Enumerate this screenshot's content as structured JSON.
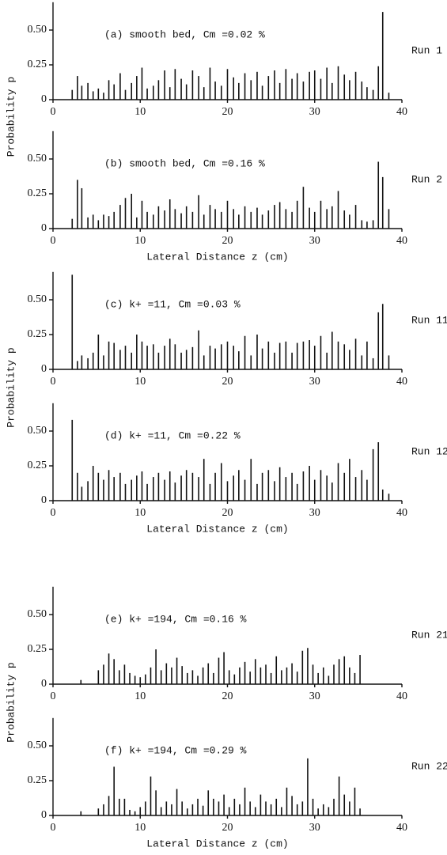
{
  "chart_data": [
    {
      "type": "bar",
      "annotation": "(a) smooth bed, Cm =0.02 %",
      "run": "Run 1",
      "ylabel": "Probability p",
      "x": [
        2.2,
        2.8,
        3.3,
        4,
        4.6,
        5.2,
        5.8,
        6.4,
        7,
        7.7,
        8.3,
        9,
        9.6,
        10.2,
        10.8,
        11.5,
        12.1,
        12.8,
        13.4,
        14,
        14.7,
        15.3,
        16,
        16.7,
        17.3,
        18,
        18.6,
        19.3,
        20,
        20.7,
        21.3,
        22,
        22.7,
        23.4,
        24,
        24.7,
        25.4,
        26,
        26.7,
        27.4,
        28,
        28.7,
        29.4,
        30,
        30.7,
        31.4,
        32,
        32.7,
        33.4,
        34,
        34.7,
        35.4,
        36,
        36.7,
        37.3,
        37.8,
        38.5
      ],
      "values": [
        0.07,
        0.17,
        0.1,
        0.12,
        0.06,
        0.08,
        0.05,
        0.14,
        0.11,
        0.19,
        0.07,
        0.12,
        0.17,
        0.23,
        0.08,
        0.1,
        0.14,
        0.21,
        0.09,
        0.22,
        0.15,
        0.11,
        0.21,
        0.17,
        0.09,
        0.23,
        0.13,
        0.1,
        0.22,
        0.16,
        0.12,
        0.19,
        0.14,
        0.2,
        0.1,
        0.17,
        0.21,
        0.12,
        0.22,
        0.15,
        0.19,
        0.13,
        0.2,
        0.21,
        0.15,
        0.23,
        0.12,
        0.24,
        0.18,
        0.14,
        0.2,
        0.13,
        0.09,
        0.07,
        0.24,
        0.63,
        0.05
      ],
      "xlim": [
        0,
        40
      ],
      "xticks": [
        0,
        10,
        20,
        30,
        40
      ],
      "ylim": [
        0,
        0.7
      ],
      "yticks": [
        0,
        0.25,
        {
          "value": 0.5,
          "label": "0.50"
        }
      ],
      "color": "#111111"
    },
    {
      "type": "bar",
      "annotation": "(b) smooth bed, Cm =0.16 %",
      "run": "Run 2",
      "xlabel": "Lateral Distance  z (cm)",
      "x": [
        2.2,
        2.8,
        3.3,
        4,
        4.6,
        5.2,
        5.8,
        6.4,
        7,
        7.7,
        8.3,
        9,
        9.6,
        10.2,
        10.8,
        11.5,
        12.1,
        12.8,
        13.4,
        14,
        14.7,
        15.3,
        16,
        16.7,
        17.3,
        18,
        18.6,
        19.3,
        20,
        20.7,
        21.3,
        22,
        22.7,
        23.4,
        24,
        24.7,
        25.4,
        26,
        26.7,
        27.4,
        28,
        28.7,
        29.4,
        30,
        30.7,
        31.4,
        32,
        32.7,
        33.4,
        34,
        34.7,
        35.4,
        36,
        36.7,
        37.3,
        37.8,
        38.5
      ],
      "values": [
        0.07,
        0.35,
        0.29,
        0.08,
        0.1,
        0.06,
        0.1,
        0.09,
        0.12,
        0.17,
        0.22,
        0.25,
        0.08,
        0.2,
        0.12,
        0.1,
        0.16,
        0.13,
        0.21,
        0.14,
        0.11,
        0.16,
        0.12,
        0.24,
        0.1,
        0.17,
        0.14,
        0.12,
        0.2,
        0.14,
        0.1,
        0.16,
        0.12,
        0.15,
        0.1,
        0.13,
        0.17,
        0.19,
        0.14,
        0.12,
        0.2,
        0.3,
        0.15,
        0.12,
        0.2,
        0.14,
        0.16,
        0.27,
        0.13,
        0.1,
        0.17,
        0.06,
        0.05,
        0.06,
        0.48,
        0.37,
        0.14
      ],
      "xlim": [
        0,
        40
      ],
      "xticks": [
        0,
        10,
        20,
        30,
        40
      ],
      "ylim": [
        0,
        0.7
      ],
      "yticks": [
        0,
        0.25,
        {
          "value": 0.5,
          "label": "0.50"
        }
      ],
      "color": "#111111"
    },
    {
      "type": "bar",
      "annotation": "(c) k+ =11, Cm =0.03 %",
      "run": "Run 11",
      "ylabel": "Probability p",
      "x": [
        2.2,
        2.8,
        3.3,
        4,
        4.6,
        5.2,
        5.8,
        6.4,
        7,
        7.7,
        8.3,
        9,
        9.6,
        10.2,
        10.8,
        11.5,
        12.1,
        12.8,
        13.4,
        14,
        14.7,
        15.3,
        16,
        16.7,
        17.3,
        18,
        18.6,
        19.3,
        20,
        20.7,
        21.3,
        22,
        22.7,
        23.4,
        24,
        24.7,
        25.4,
        26,
        26.7,
        27.4,
        28,
        28.7,
        29.4,
        30,
        30.7,
        31.4,
        32,
        32.7,
        33.4,
        34,
        34.7,
        35.4,
        36,
        36.7,
        37.3,
        37.8,
        38.5
      ],
      "values": [
        0.68,
        0.06,
        0.1,
        0.08,
        0.12,
        0.25,
        0.1,
        0.2,
        0.19,
        0.14,
        0.17,
        0.12,
        0.25,
        0.2,
        0.17,
        0.18,
        0.12,
        0.17,
        0.22,
        0.18,
        0.12,
        0.14,
        0.16,
        0.28,
        0.1,
        0.17,
        0.15,
        0.18,
        0.2,
        0.17,
        0.13,
        0.24,
        0.1,
        0.25,
        0.15,
        0.2,
        0.12,
        0.19,
        0.2,
        0.12,
        0.19,
        0.2,
        0.21,
        0.17,
        0.24,
        0.12,
        0.27,
        0.2,
        0.18,
        0.14,
        0.22,
        0.1,
        0.2,
        0.08,
        0.41,
        0.47,
        0.1
      ],
      "xlim": [
        0,
        40
      ],
      "xticks": [
        0,
        10,
        20,
        30,
        40
      ],
      "ylim": [
        0,
        0.7
      ],
      "yticks": [
        0,
        0.25,
        {
          "value": 0.5,
          "label": "0.50"
        }
      ],
      "color": "#111111"
    },
    {
      "type": "bar",
      "annotation": "(d) k+ =11, Cm =0.22 %",
      "run": "Run 12",
      "xlabel": "Lateral Distance  z (cm)",
      "x": [
        2.2,
        2.8,
        3.3,
        4,
        4.6,
        5.2,
        5.8,
        6.4,
        7,
        7.7,
        8.3,
        9,
        9.6,
        10.2,
        10.8,
        11.5,
        12.1,
        12.8,
        13.4,
        14,
        14.7,
        15.3,
        16,
        16.7,
        17.3,
        18,
        18.6,
        19.3,
        20,
        20.7,
        21.3,
        22,
        22.7,
        23.4,
        24,
        24.7,
        25.4,
        26,
        26.7,
        27.4,
        28,
        28.7,
        29.4,
        30,
        30.7,
        31.4,
        32,
        32.7,
        33.4,
        34,
        34.7,
        35.4,
        36,
        36.7,
        37.3,
        37.8,
        38.5
      ],
      "values": [
        0.58,
        0.2,
        0.1,
        0.14,
        0.25,
        0.2,
        0.15,
        0.22,
        0.17,
        0.2,
        0.12,
        0.15,
        0.18,
        0.21,
        0.12,
        0.17,
        0.2,
        0.15,
        0.21,
        0.13,
        0.18,
        0.22,
        0.2,
        0.17,
        0.3,
        0.12,
        0.2,
        0.27,
        0.14,
        0.18,
        0.22,
        0.15,
        0.3,
        0.12,
        0.2,
        0.22,
        0.14,
        0.24,
        0.17,
        0.2,
        0.12,
        0.21,
        0.25,
        0.15,
        0.22,
        0.18,
        0.13,
        0.27,
        0.2,
        0.3,
        0.17,
        0.22,
        0.15,
        0.37,
        0.42,
        0.08,
        0.05
      ],
      "xlim": [
        0,
        40
      ],
      "xticks": [
        0,
        10,
        20,
        30,
        40
      ],
      "ylim": [
        0,
        0.7
      ],
      "yticks": [
        0,
        0.25,
        {
          "value": 0.5,
          "label": "0.50"
        }
      ],
      "color": "#111111"
    },
    {
      "type": "bar",
      "annotation": "(e) k+ =194, Cm =0.16 %",
      "run": "Run 21",
      "ylabel": "Probability p",
      "x": [
        3.2,
        5.2,
        5.8,
        6.4,
        7,
        7.6,
        8.2,
        8.8,
        9.4,
        10,
        10.6,
        11.2,
        11.8,
        12.4,
        13,
        13.6,
        14.2,
        14.8,
        15.4,
        16,
        16.6,
        17.2,
        17.8,
        18.4,
        19,
        19.6,
        20.2,
        20.8,
        21.4,
        22,
        22.6,
        23.2,
        23.8,
        24.4,
        25,
        25.6,
        26.2,
        26.8,
        27.4,
        28,
        28.6,
        29.2,
        29.8,
        30.4,
        31,
        31.6,
        32.2,
        32.8,
        33.4,
        34,
        34.6,
        35.2
      ],
      "values": [
        0.03,
        0.1,
        0.14,
        0.22,
        0.18,
        0.1,
        0.14,
        0.08,
        0.06,
        0.05,
        0.07,
        0.12,
        0.25,
        0.1,
        0.15,
        0.12,
        0.19,
        0.13,
        0.08,
        0.1,
        0.06,
        0.12,
        0.15,
        0.08,
        0.19,
        0.23,
        0.1,
        0.07,
        0.12,
        0.16,
        0.09,
        0.18,
        0.12,
        0.14,
        0.08,
        0.2,
        0.1,
        0.12,
        0.15,
        0.09,
        0.24,
        0.26,
        0.14,
        0.08,
        0.12,
        0.06,
        0.14,
        0.18,
        0.2,
        0.12,
        0.08,
        0.21
      ],
      "xlim": [
        0,
        40
      ],
      "xticks": [
        0,
        10,
        20,
        30,
        40
      ],
      "ylim": [
        0,
        0.7
      ],
      "yticks": [
        0,
        0.25,
        {
          "value": 0.5,
          "label": "0.50"
        }
      ],
      "color": "#111111"
    },
    {
      "type": "bar",
      "annotation": "(f) k+ =194, Cm =0.29 %",
      "run": "Run 22",
      "xlabel": "Lateral Distance  z (cm)",
      "x": [
        3.2,
        5.2,
        5.8,
        6.4,
        7,
        7.6,
        8.2,
        8.8,
        9.4,
        10,
        10.6,
        11.2,
        11.8,
        12.4,
        13,
        13.6,
        14.2,
        14.8,
        15.4,
        16,
        16.6,
        17.2,
        17.8,
        18.4,
        19,
        19.6,
        20.2,
        20.8,
        21.4,
        22,
        22.6,
        23.2,
        23.8,
        24.4,
        25,
        25.6,
        26.2,
        26.8,
        27.4,
        28,
        28.6,
        29.2,
        29.8,
        30.4,
        31,
        31.6,
        32.2,
        32.8,
        33.4,
        34,
        34.6,
        35.2
      ],
      "values": [
        0.03,
        0.05,
        0.08,
        0.14,
        0.35,
        0.12,
        0.12,
        0.04,
        0.03,
        0.06,
        0.1,
        0.28,
        0.18,
        0.06,
        0.1,
        0.08,
        0.19,
        0.1,
        0.05,
        0.08,
        0.12,
        0.07,
        0.18,
        0.12,
        0.1,
        0.15,
        0.06,
        0.12,
        0.08,
        0.2,
        0.1,
        0.06,
        0.15,
        0.1,
        0.08,
        0.12,
        0.06,
        0.2,
        0.14,
        0.08,
        0.1,
        0.41,
        0.12,
        0.05,
        0.08,
        0.06,
        0.12,
        0.28,
        0.15,
        0.1,
        0.2,
        0.05
      ],
      "xlim": [
        0,
        40
      ],
      "xticks": [
        0,
        10,
        20,
        30,
        40
      ],
      "ylim": [
        0,
        0.7
      ],
      "yticks": [
        0,
        0.25,
        {
          "value": 0.5,
          "label": "0.50"
        }
      ],
      "color": "#111111"
    }
  ]
}
